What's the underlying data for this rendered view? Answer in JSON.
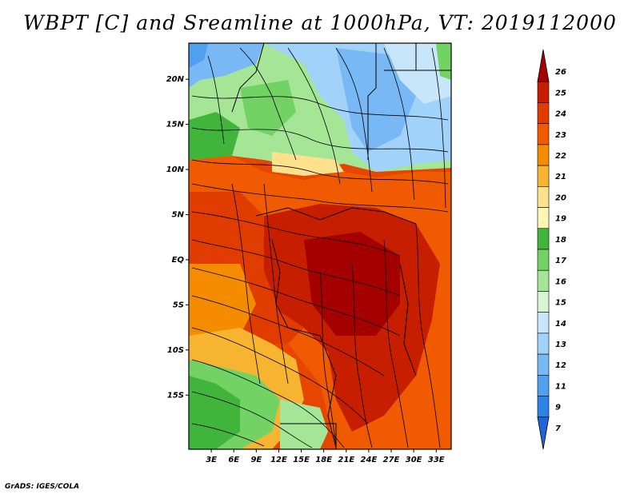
{
  "title": "WBPT [C] and Sreamline at 1000hPa, VT: 2019112000",
  "footer": "GrADS: IGES/COLA",
  "map": {
    "lat_range": [
      -21,
      24
    ],
    "lon_range": [
      0,
      35
    ],
    "lat_ticks": [
      "20N",
      "15N",
      "10N",
      "5N",
      "EQ",
      "5S",
      "10S",
      "15S"
    ],
    "lon_ticks": [
      "3E",
      "6E",
      "9E",
      "12E",
      "15E",
      "18E",
      "21E",
      "24E",
      "27E",
      "30E",
      "33E"
    ]
  },
  "colorbar": {
    "labels": [
      "26",
      "25",
      "24",
      "23",
      "22",
      "21",
      "20",
      "19",
      "18",
      "17",
      "16",
      "15",
      "14",
      "13",
      "12",
      "11",
      "9",
      "7"
    ],
    "colors": [
      "#a50000",
      "#c81e00",
      "#e13c00",
      "#f05a00",
      "#f58c00",
      "#f7b431",
      "#fde18c",
      "#fff5b4",
      "#41b43c",
      "#73d264",
      "#a5e696",
      "#d7f5d2",
      "#c8e6fa",
      "#a0d2fa",
      "#78b9f5",
      "#50a0f0",
      "#2d82e6",
      "#1e64dc"
    ]
  },
  "colors": {
    "hot": "#c81e00",
    "warm": "#f05a00",
    "green": "#73d264",
    "cool": "#a0d2fa"
  }
}
